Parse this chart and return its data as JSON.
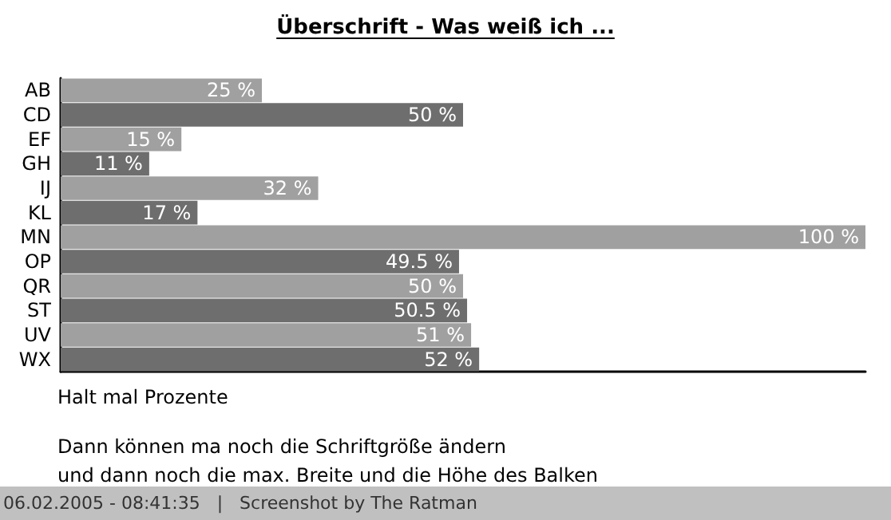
{
  "chart_data": {
    "type": "bar",
    "orientation": "horizontal",
    "title": "Überschrift - Was weiß ich ...",
    "categories": [
      "AB",
      "CD",
      "EF",
      "GH",
      "IJ",
      "KL",
      "MN",
      "OP",
      "QR",
      "ST",
      "UV",
      "WX"
    ],
    "values": [
      25,
      50,
      15,
      11,
      32,
      17,
      100,
      49.5,
      50,
      50.5,
      51,
      52
    ],
    "colors": [
      "#a0a0a0",
      "#6e6e6e",
      "#a0a0a0",
      "#6e6e6e",
      "#a0a0a0",
      "#6e6e6e",
      "#a0a0a0",
      "#6e6e6e",
      "#a0a0a0",
      "#6e6e6e",
      "#a0a0a0",
      "#6e6e6e"
    ],
    "value_labels": [
      "25 %",
      "50 %",
      "15 %",
      "11 %",
      "32 %",
      "17 %",
      "100 %",
      "49.5 %",
      "50 %",
      "50.5 %",
      "51 %",
      "52 %"
    ],
    "xlim": [
      0,
      100
    ],
    "tick_labels": "y",
    "annotations": [
      "Halt mal Prozente",
      "Dann können ma noch die Schriftgröße ändern",
      "und dann noch die max. Breite und die Höhe des Balken",
      "06.02.2005 - 08:41:35   |   Screenshot by The Ratman"
    ]
  }
}
